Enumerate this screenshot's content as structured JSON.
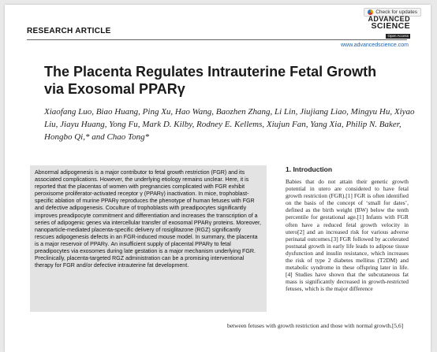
{
  "badge": {
    "label": "Check for updates"
  },
  "header": {
    "section": "RESEARCH ARTICLE",
    "logo": {
      "line1": "ADVANCED",
      "line2": "SCIENCE",
      "line3": "Open Access"
    },
    "url": "www.advancedscience.com"
  },
  "article": {
    "title": "The Placenta Regulates Intrauterine Fetal Growth via Exosomal PPARγ",
    "authors": "Xiaofang Luo, Biao Huang, Ping Xu, Hao Wang, Baozhen Zhang, Li Lin, Jiujiang Liao, Mingyu Hu, Xiyao Liu, Jiayu Huang, Yong Fu, Mark D. Kilby, Rodney E. Kellems, Xiujun Fan, Yang Xia, Philip N. Baker, Hongbo Qi,* and Chao Tong*",
    "abstract": "Abnormal adipogenesis is a major contributor to fetal growth restriction (FGR) and its associated complications. However, the underlying etiology remains unclear. Here, it is reported that the placentas of women with pregnancies complicated with FGR exhibit peroxisome proliferator-activated receptor γ (PPARγ) inactivation. In mice, trophoblast-specific ablation of murine PPARγ reproduces the phenotype of human fetuses with FGR and defective adipogenesis. Coculture of trophoblasts with preadipocytes significantly improves preadipocyte commitment and differentiation and increases the transcription of a series of adipogenic genes via intercellular transfer of exosomal PPARγ proteins. Moreover, nanoparticle-mediated placenta-specific delivery of rosiglitazone (RGZ) significantly rescues adipogenesis defects in an FGR-induced mouse model. In summary, the placenta is a major reservoir of PPARγ. An insufficient supply of placental PPARγ to fetal preadipocytes via exosomes during late gestation is a major mechanism underlying FGR. Preclinically, placenta-targeted RGZ administration can be a promising interventional therapy for FGR and/or defective intrauterine fat development.",
    "intro_heading": "1. Introduction",
    "intro_column": "Babies that do not attain their genetic growth potential in utero are considered to have fetal growth restriction (FGR).[1] FGR is often identified on the basis of the concept of ‘small for dates’, defined as the birth weight (BW) below the tenth percentile for gestational age.[1] Infants with FGR often have a reduced fetal growth velocity in utero[2] and an increased risk for various adverse perinatal outcomes.[3] FGR followed by accelerated postnatal growth in early life leads to adipose tissue dysfunction and insulin resistance, which increases the risk of type 2 diabetes mellitus (T2DM) and metabolic syndrome in these offspring later in life.[4] Studies have shown that the subcutaneous fat mass is significantly decreased in growth-restricted fetuses, which is the major difference",
    "intro_tail": "between fetuses with growth restriction and those with normal growth.[5,6]"
  }
}
